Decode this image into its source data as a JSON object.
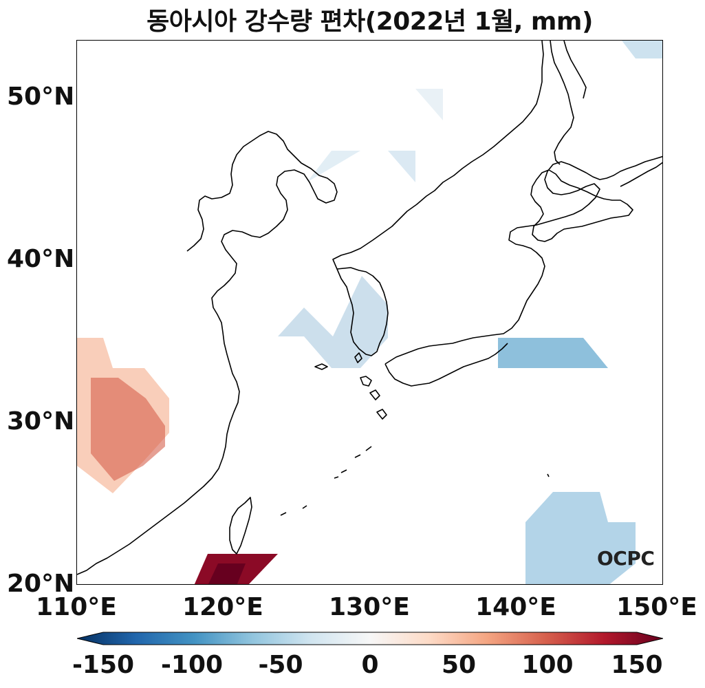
{
  "title": "동아시아 강수량 편차(2022년 1월, mm)",
  "map": {
    "lon_range": [
      110,
      150
    ],
    "lat_range": [
      20,
      53.5
    ],
    "lat_ticks": [
      "50°N",
      "40°N",
      "30°N",
      "20°N"
    ],
    "lon_ticks": [
      "110°E",
      "120°E",
      "130°E",
      "140°E",
      "150°E"
    ],
    "anomaly_regions": [
      {
        "name": "south-china",
        "lon": 114,
        "lat": 30,
        "value": 70
      },
      {
        "name": "taiwan-strait",
        "lon": 121,
        "lat": 21,
        "value": 150
      },
      {
        "name": "korea-yellow-sea",
        "lon": 129,
        "lat": 35,
        "value": -25
      },
      {
        "name": "south-of-japan",
        "lon": 142,
        "lat": 34,
        "value": -40
      },
      {
        "name": "northwest-pacific",
        "lon": 144,
        "lat": 23,
        "value": -30
      },
      {
        "name": "manchuria",
        "lon": 130,
        "lat": 46,
        "value": -8
      },
      {
        "name": "northern-sea",
        "lon": 146,
        "lat": 53,
        "value": -15
      }
    ]
  },
  "colorbar": {
    "range": [
      -150,
      150
    ],
    "ticks": [
      "-150",
      "-100",
      "-50",
      "0",
      "50",
      "100",
      "150"
    ],
    "colors": [
      "#053061",
      "#2166ac",
      "#4393c3",
      "#92c5de",
      "#d1e5f0",
      "#f7f7f7",
      "#fddbc7",
      "#f4a582",
      "#d6604d",
      "#b2182b",
      "#67001f"
    ]
  },
  "logo": "OCPC"
}
